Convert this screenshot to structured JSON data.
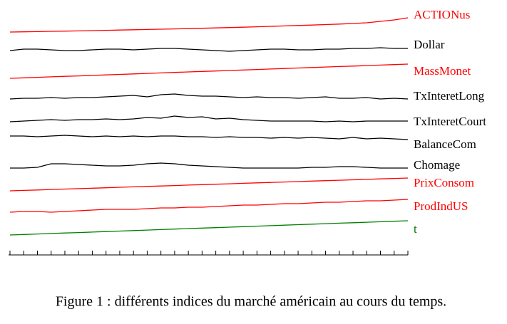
{
  "chart_data": {
    "type": "line",
    "caption": "Figure 1 : différents indices du marché américain au cours du temps.",
    "categories": [
      null,
      null,
      null,
      null,
      null,
      null,
      null,
      null,
      null,
      null,
      null,
      null,
      null,
      null,
      null,
      null,
      null,
      null,
      null,
      null,
      null,
      null,
      null,
      null,
      null,
      null,
      null,
      null,
      null,
      null
    ],
    "ylim": [
      0,
      20
    ],
    "series": [
      {
        "name": "ACTIONus",
        "color": "#ff0000",
        "values": [
          0,
          0.3,
          0.6,
          1,
          1.3,
          1.6,
          2,
          2.4,
          2.8,
          3.2,
          3.6,
          4,
          4.4,
          4.8,
          5.3,
          5.8,
          6.3,
          6.8,
          7.4,
          8,
          8.6,
          9.2,
          9.8,
          10.5,
          11.2,
          12,
          13,
          15,
          17,
          20
        ]
      },
      {
        "name": "Dollar",
        "color": "#000000",
        "values": [
          8,
          10,
          10,
          9,
          8,
          8,
          9,
          10,
          10,
          9,
          10,
          11,
          11,
          10,
          9,
          8,
          7,
          8,
          9,
          10,
          10,
          9,
          9,
          10,
          10,
          11,
          11,
          12,
          11,
          11
        ]
      },
      {
        "name": "MassMonet",
        "color": "#ff0000",
        "values": [
          0,
          0.7,
          1.4,
          2.1,
          2.8,
          3.4,
          4.1,
          4.8,
          5.5,
          6.2,
          6.9,
          7.6,
          8.3,
          9,
          9.7,
          10.3,
          11,
          11.7,
          12.4,
          13.1,
          13.8,
          14.5,
          15.2,
          15.9,
          16.6,
          17.2,
          17.9,
          18.6,
          19.3,
          20
        ]
      },
      {
        "name": "TxInteretLong",
        "color": "#000000",
        "values": [
          8,
          9,
          9,
          10,
          9,
          10,
          10,
          11,
          12,
          13,
          11,
          14,
          15,
          13,
          12,
          12,
          11,
          10,
          11,
          10,
          10,
          9,
          10,
          11,
          9,
          9,
          10,
          8,
          9,
          8
        ]
      },
      {
        "name": "TxInteretCourt",
        "color": "#000000",
        "values": [
          6,
          7,
          8,
          9,
          8,
          9,
          9,
          10,
          9,
          10,
          12,
          11,
          14,
          12,
          13,
          10,
          11,
          9,
          8,
          7,
          7,
          7,
          7,
          6,
          7,
          6,
          7,
          7,
          7,
          7
        ]
      },
      {
        "name": "BalanceCom",
        "color": "#000000",
        "values": [
          10,
          10,
          9,
          10,
          11,
          10,
          9,
          10,
          9,
          10,
          9,
          10,
          10,
          9,
          9,
          8,
          9,
          8,
          8,
          7,
          8,
          7,
          8,
          7,
          6,
          8,
          6,
          7,
          6,
          5
        ]
      },
      {
        "name": "Chomage",
        "color": "#000000",
        "values": [
          6,
          6,
          7,
          12,
          12,
          11,
          10,
          9,
          9,
          10,
          12,
          13,
          12,
          10,
          9,
          8,
          7,
          6,
          6,
          6,
          6,
          6,
          7,
          7,
          8,
          8,
          7,
          6,
          6,
          6
        ]
      },
      {
        "name": "PrixConsom",
        "color": "#ff0000",
        "values": [
          0,
          0.6,
          1.2,
          1.9,
          2.5,
          3.1,
          3.7,
          4.3,
          5,
          5.6,
          6.2,
          6.8,
          7.4,
          8.1,
          8.7,
          9.3,
          9.9,
          10.6,
          11.2,
          11.8,
          12.4,
          13,
          13.7,
          14.3,
          14.9,
          15.5,
          16.1,
          16.8,
          17.4,
          18
        ]
      },
      {
        "name": "ProdIndUS",
        "color": "#ff0000",
        "values": [
          2,
          3,
          3,
          2,
          3,
          4,
          5,
          6,
          6,
          6,
          7,
          8,
          8,
          9,
          9,
          10,
          11,
          12,
          12,
          13,
          14,
          14,
          15,
          16,
          16,
          17,
          18,
          18,
          19,
          20
        ]
      },
      {
        "name": "t",
        "color": "#008000",
        "values": [
          0,
          0.7,
          1.4,
          2.1,
          2.8,
          3.4,
          4.1,
          4.8,
          5.5,
          6.2,
          6.9,
          7.6,
          8.3,
          9,
          9.7,
          10.3,
          11,
          11.7,
          12.4,
          13.1,
          13.8,
          14.5,
          15.2,
          15.9,
          16.6,
          17.2,
          17.9,
          18.6,
          19.3,
          20
        ]
      }
    ]
  }
}
